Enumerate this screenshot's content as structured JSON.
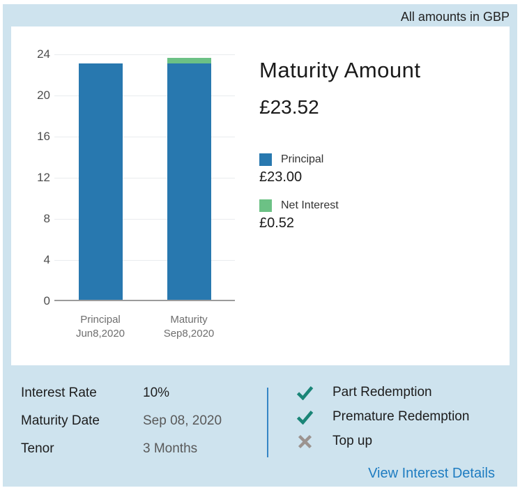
{
  "header": {
    "note": "All amounts in GBP"
  },
  "summary": {
    "title": "Maturity Amount",
    "amount": "£23.52",
    "legend": [
      {
        "label": "Principal",
        "value": "£23.00",
        "color": "#2878af"
      },
      {
        "label": "Net Interest",
        "value": "£0.52",
        "color": "#6cc185"
      }
    ]
  },
  "chart_data": {
    "type": "bar",
    "stacked": true,
    "categories": [
      [
        "Principal",
        "Jun8,2020"
      ],
      [
        "Maturity",
        "Sep8,2020"
      ]
    ],
    "series": [
      {
        "name": "Principal",
        "values": [
          23,
          23
        ],
        "color": "#2878af"
      },
      {
        "name": "Net Interest",
        "values": [
          0,
          0.52
        ],
        "color": "#6cc185"
      }
    ],
    "title": "Maturity Amount",
    "xlabel": "",
    "ylabel": "",
    "ylim": [
      0,
      24
    ],
    "ytick_step": 4,
    "grid": true,
    "legend_position": "right"
  },
  "details": {
    "rows": [
      {
        "label": "Interest Rate",
        "value": "10%"
      },
      {
        "label": "Maturity Date",
        "value": "Sep 08, 2020"
      },
      {
        "label": "Tenor",
        "value": "3 Months"
      }
    ],
    "features": [
      {
        "label": "Part Redemption",
        "available": true
      },
      {
        "label": "Premature Redemption",
        "available": true
      },
      {
        "label": "Top up",
        "available": false
      }
    ],
    "link": "View Interest Details"
  },
  "colors": {
    "panel_background": "#cee3ee",
    "card_background": "#ffffff",
    "bar_principal": "#2878af",
    "bar_interest": "#6cc185",
    "check_icon": "#1a8577",
    "cross_icon": "#9b938f",
    "link_blue": "#1e7cc1",
    "divider_blue": "#3585c5"
  }
}
